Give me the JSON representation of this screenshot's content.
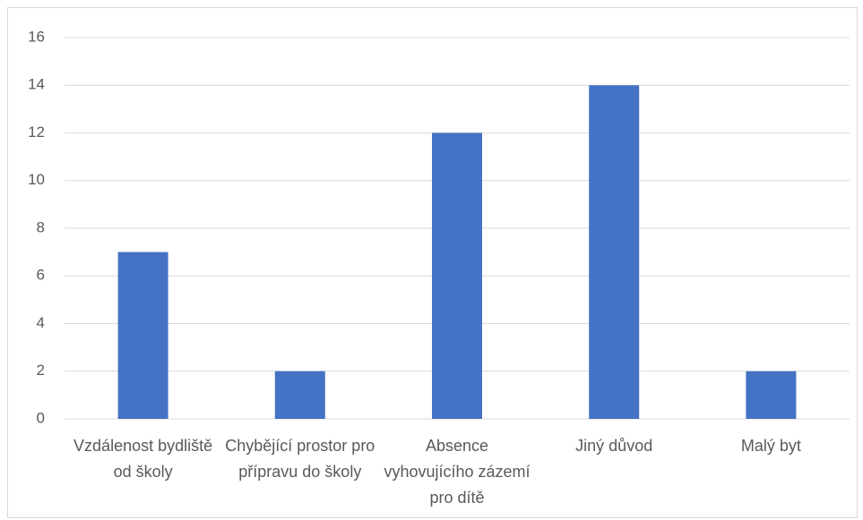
{
  "chart_data": {
    "type": "bar",
    "categories": [
      "Vzdálenost bydliště od školy",
      "Chybějící prostor pro přípravu do školy",
      "Absence vyhovujícího zázemí pro dítě",
      "Jiný důvod",
      "Malý byt"
    ],
    "values": [
      7,
      2,
      12,
      14,
      2
    ],
    "color": "#4472c4",
    "ylim": [
      0,
      16
    ],
    "yticks": [
      0,
      2,
      4,
      6,
      8,
      10,
      12,
      14,
      16
    ],
    "grid": true
  }
}
